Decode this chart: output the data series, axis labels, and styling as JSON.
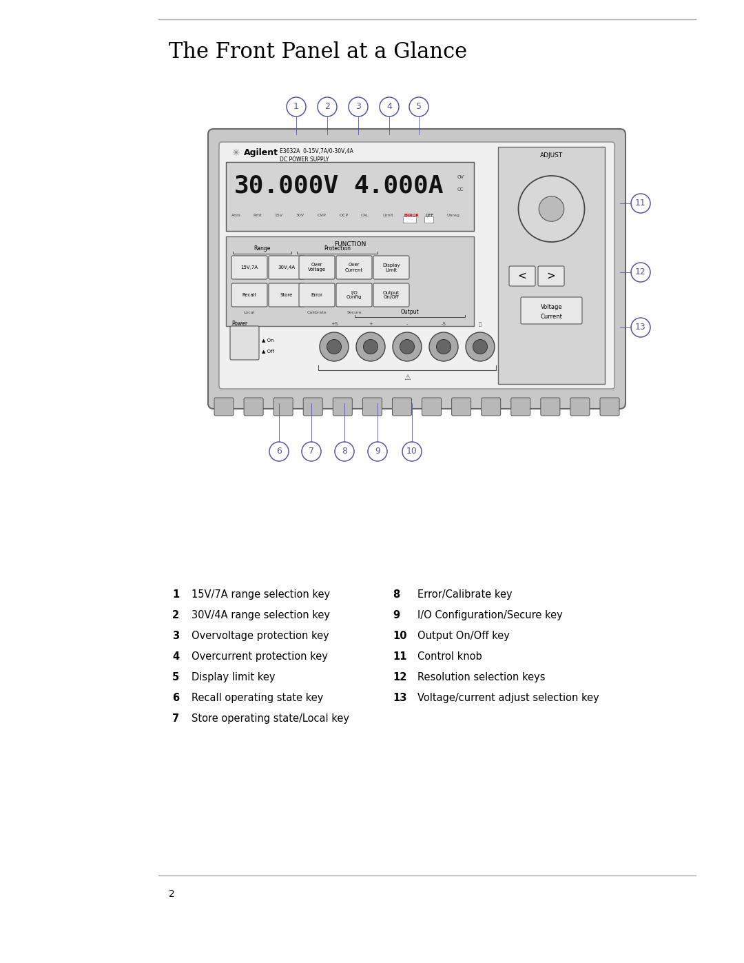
{
  "title": "The Front Panel at a Glance",
  "page_number": "2",
  "bg_color": "#ffffff",
  "legend_left": [
    {
      "num": "1",
      "text": "15V/7A range selection key"
    },
    {
      "num": "2",
      "text": "30V/4A range selection key"
    },
    {
      "num": "3",
      "text": "Overvoltage protection key"
    },
    {
      "num": "4",
      "text": "Overcurrent protection key"
    },
    {
      "num": "5",
      "text": "Display limit key"
    },
    {
      "num": "6",
      "text": "Recall operating state key"
    },
    {
      "num": "7",
      "text": "Store operating state/Local key"
    }
  ],
  "legend_right": [
    {
      "num": "8",
      "text": "Error/Calibrate key"
    },
    {
      "num": "9",
      "text": "I/O Configuration/Secure key"
    },
    {
      "num": "10",
      "text": "Output On/Off key"
    },
    {
      "num": "11",
      "text": "Control knob"
    },
    {
      "num": "12",
      "text": "Resolution selection keys"
    },
    {
      "num": "13",
      "text": "Voltage/current adjust selection key"
    }
  ],
  "circle_color": "#5555aa",
  "top_line_color": "#aaaaaa",
  "bottom_line_color": "#aaaaaa"
}
